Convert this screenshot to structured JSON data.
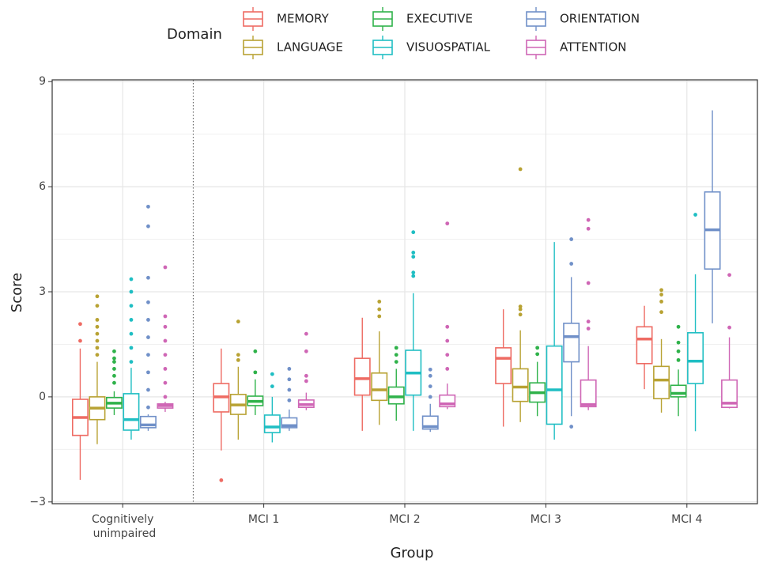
{
  "chart_data": {
    "type": "box",
    "legend_title": "Domain",
    "x_label": "Group",
    "y_label": "Score",
    "categories": [
      "Cognitively unimpaired",
      "MCI 1",
      "MCI 2",
      "MCI 3",
      "MCI 4"
    ],
    "ylim": [
      -3.05,
      9.05
    ],
    "yticks": [
      {
        "value": -3,
        "label": "−3"
      },
      0,
      3,
      6,
      9
    ],
    "grid": true,
    "series": [
      {
        "name": "MEMORY",
        "color": "#ee6b63",
        "values": [
          {
            "low": -2.37,
            "q1": -1.1,
            "median": -0.59,
            "q3": -0.07,
            "high": 1.38,
            "outliers": [
              1.6,
              2.08
            ]
          },
          {
            "low": -1.53,
            "q1": -0.43,
            "median": 0,
            "q3": 0.38,
            "high": 1.38,
            "outliers": [
              -2.38
            ]
          },
          {
            "low": -0.97,
            "q1": 0.05,
            "median": 0.52,
            "q3": 1.1,
            "high": 2.26,
            "outliers": []
          },
          {
            "low": -0.85,
            "q1": 0.38,
            "median": 1.1,
            "q3": 1.4,
            "high": 2.5,
            "outliers": []
          },
          {
            "low": 0.22,
            "q1": 0.95,
            "median": 1.65,
            "q3": 2.0,
            "high": 2.6,
            "outliers": []
          }
        ]
      },
      {
        "name": "LANGUAGE",
        "color": "#b8a233",
        "values": [
          {
            "low": -1.35,
            "q1": -0.65,
            "median": -0.32,
            "q3": 0.0,
            "high": 1.0,
            "outliers": [
              1.2,
              1.4,
              1.6,
              1.8,
              2.0,
              2.2,
              2.6,
              2.87
            ]
          },
          {
            "low": -1.22,
            "q1": -0.5,
            "median": -0.23,
            "q3": 0.07,
            "high": 0.86,
            "outliers": [
              1.05,
              1.2,
              2.15
            ]
          },
          {
            "low": -0.8,
            "q1": -0.1,
            "median": 0.2,
            "q3": 0.68,
            "high": 1.87,
            "outliers": [
              2.3,
              2.5,
              2.72
            ]
          },
          {
            "low": -0.72,
            "q1": -0.13,
            "median": 0.28,
            "q3": 0.8,
            "high": 1.9,
            "outliers": [
              2.35,
              2.5,
              2.58,
              6.5
            ]
          },
          {
            "low": -0.45,
            "q1": -0.05,
            "median": 0.48,
            "q3": 0.87,
            "high": 1.65,
            "outliers": [
              2.42,
              2.72,
              2.92,
              3.05
            ]
          }
        ]
      },
      {
        "name": "EXECUTIVE",
        "color": "#2fb24a",
        "values": [
          {
            "low": -0.52,
            "q1": -0.32,
            "median": -0.18,
            "q3": -0.02,
            "high": 0.16,
            "outliers": [
              0.4,
              0.6,
              0.8,
              1.0,
              1.1,
              1.3
            ]
          },
          {
            "low": -0.52,
            "q1": -0.25,
            "median": -0.13,
            "q3": 0.02,
            "high": 0.5,
            "outliers": [
              0.7,
              1.3
            ]
          },
          {
            "low": -0.68,
            "q1": -0.2,
            "median": 0,
            "q3": 0.28,
            "high": 0.8,
            "outliers": [
              1.0,
              1.2,
              1.4
            ]
          },
          {
            "low": -0.55,
            "q1": -0.15,
            "median": 0.12,
            "q3": 0.4,
            "high": 1.0,
            "outliers": [
              1.22,
              1.4
            ]
          },
          {
            "low": -0.55,
            "q1": 0,
            "median": 0.1,
            "q3": 0.33,
            "high": 0.78,
            "outliers": [
              1.05,
              1.3,
              1.55,
              2.0
            ]
          }
        ]
      },
      {
        "name": "VISUOSPATIAL",
        "color": "#1fbec3",
        "values": [
          {
            "low": -1.22,
            "q1": -0.95,
            "median": -0.65,
            "q3": 0.09,
            "high": 0.83,
            "outliers": [
              1.0,
              1.4,
              1.8,
              2.2,
              2.6,
              3.0,
              3.36
            ]
          },
          {
            "low": -1.3,
            "q1": -1.02,
            "median": -0.86,
            "q3": -0.52,
            "high": 0,
            "outliers": [
              0.3,
              0.65
            ]
          },
          {
            "low": -0.97,
            "q1": 0.05,
            "median": 0.68,
            "q3": 1.33,
            "high": 2.96,
            "outliers": [
              3.45,
              3.55,
              4.0,
              4.12,
              4.7
            ]
          },
          {
            "low": -1.22,
            "q1": -0.78,
            "median": 0.2,
            "q3": 1.45,
            "high": 4.42,
            "outliers": []
          },
          {
            "low": -0.98,
            "q1": 0.38,
            "median": 1.02,
            "q3": 1.83,
            "high": 3.5,
            "outliers": [
              5.2
            ]
          }
        ]
      },
      {
        "name": "ORIENTATION",
        "color": "#7090c8",
        "values": [
          {
            "low": -0.97,
            "q1": -0.88,
            "median": -0.8,
            "q3": -0.56,
            "high": -0.5,
            "outliers": [
              -0.3,
              0.2,
              0.7,
              1.2,
              1.7,
              2.2,
              2.7,
              3.4,
              4.87,
              5.43
            ]
          },
          {
            "low": -0.97,
            "q1": -0.88,
            "median": -0.82,
            "q3": -0.6,
            "high": -0.36,
            "outliers": [
              -0.1,
              0.2,
              0.5,
              0.8
            ]
          },
          {
            "low": -1.0,
            "q1": -0.92,
            "median": -0.85,
            "q3": -0.55,
            "high": -0.2,
            "outliers": [
              0.0,
              0.3,
              0.6,
              0.78
            ]
          },
          {
            "low": -0.55,
            "q1": 1.0,
            "median": 1.72,
            "q3": 2.1,
            "high": 3.42,
            "outliers": [
              -0.85,
              3.8,
              4.5
            ]
          },
          {
            "low": 2.1,
            "q1": 3.65,
            "median": 4.77,
            "q3": 5.85,
            "high": 8.18,
            "outliers": []
          }
        ]
      },
      {
        "name": "ATTENTION",
        "color": "#cf66b5",
        "values": [
          {
            "low": -0.43,
            "q1": -0.32,
            "median": -0.25,
            "q3": -0.2,
            "high": -0.14,
            "outliers": [
              0.0,
              0.4,
              0.8,
              1.2,
              1.6,
              2.0,
              2.3,
              3.7
            ]
          },
          {
            "low": -0.38,
            "q1": -0.3,
            "median": -0.22,
            "q3": -0.09,
            "high": 0.12,
            "outliers": [
              0.45,
              0.6,
              1.3,
              1.8
            ]
          },
          {
            "low": -0.35,
            "q1": -0.28,
            "median": -0.2,
            "q3": 0.05,
            "high": 0.38,
            "outliers": [
              0.8,
              1.2,
              1.6,
              2.0,
              4.95
            ]
          },
          {
            "low": -0.38,
            "q1": -0.28,
            "median": -0.22,
            "q3": 0.48,
            "high": 1.45,
            "outliers": [
              1.95,
              2.15,
              3.25,
              4.8,
              5.05
            ]
          },
          {
            "low": -0.33,
            "q1": -0.3,
            "median": -0.18,
            "q3": 0.48,
            "high": 1.7,
            "outliers": [
              1.98,
              3.48
            ]
          }
        ]
      }
    ]
  }
}
